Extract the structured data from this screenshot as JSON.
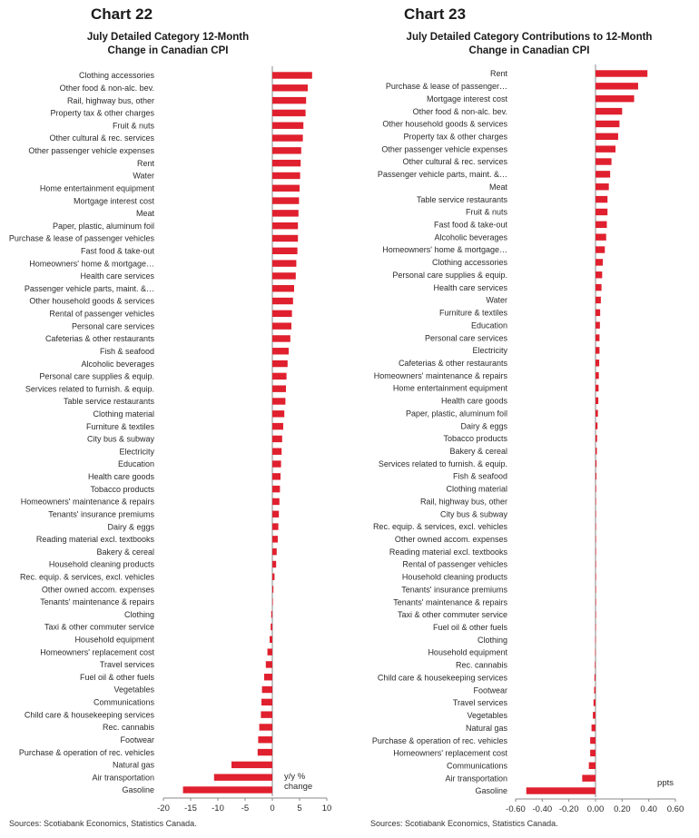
{
  "colors": {
    "bar": "#e0202e",
    "axis": "#888888",
    "text": "#2a2a2a"
  },
  "left_panel": {
    "number": "Chart 22",
    "title_lines": [
      "July Detailed Category 12-Month",
      "Change in Canadian CPI"
    ],
    "source": "Sources: Scotiabank Economics, Statistics Canada."
  },
  "right_panel": {
    "number": "Chart 23",
    "title_lines": [
      "July Detailed Category Contributions to 12-Month",
      "Change in Canadian CPI"
    ],
    "source": "Sources: Scotiabank Economics, Statistics Canada."
  },
  "chart_data": [
    {
      "type": "bar",
      "orientation": "horizontal",
      "title": "July Detailed Category 12-Month Change in Canadian CPI",
      "unit_note": [
        "y/y %",
        "change"
      ],
      "xlim": [
        -20,
        10
      ],
      "xticks": [
        -20,
        -15,
        -10,
        -5,
        0,
        5,
        10
      ],
      "grid": false,
      "categories": [
        "Clothing accessories",
        "Other food & non-alc. bev.",
        "Rail, highway bus, other",
        "Property tax & other charges",
        "Fruit & nuts",
        "Other cultural & rec. services",
        "Other passenger vehicle expenses",
        "Rent",
        "Water",
        "Home entertainment equipment",
        "Mortgage interest cost",
        "Meat",
        "Paper, plastic, aluminum foil",
        "Purchase & lease of passenger vehicles",
        "Fast food & take-out",
        "Homeowners' home & mortgage…",
        "Health care services",
        "Passenger vehicle parts, maint. &…",
        "Other household goods & services",
        "Rental of passenger vehicles",
        "Personal care services",
        "Cafeterias & other restaurants",
        "Fish & seafood",
        "Alcoholic beverages",
        "Personal care supplies & equip.",
        "Services related to furnish. & equip.",
        "Table service restaurants",
        "Clothing material",
        "Furniture & textiles",
        "City bus & subway",
        "Electricity",
        "Education",
        "Health care goods",
        "Tobacco products",
        "Homeowners' maintenance & repairs",
        "Tenants' insurance premiums",
        "Dairy & eggs",
        "Reading material excl. textbooks",
        "Bakery & cereal",
        "Household cleaning products",
        "Rec. equip. & services, excl. vehicles",
        "Other owned accom. expenses",
        "Tenants' maintenance & repairs",
        "Clothing",
        "Taxi & other commuter service",
        "Household equipment",
        "Homeowners' replacement cost",
        "Travel services",
        "Fuel oil & other fuels",
        "Vegetables",
        "Communications",
        "Child care & housekeeping services",
        "Rec. cannabis",
        "Footwear",
        "Purchase & operation of rec. vehicles",
        "Natural gas",
        "Air transportation",
        "Gasoline"
      ],
      "values": [
        7.3,
        6.5,
        6.2,
        6.1,
        5.7,
        5.6,
        5.3,
        5.2,
        5.1,
        5.0,
        4.9,
        4.8,
        4.7,
        4.7,
        4.6,
        4.4,
        4.3,
        4.0,
        3.8,
        3.6,
        3.5,
        3.3,
        3.0,
        2.8,
        2.6,
        2.5,
        2.4,
        2.2,
        2.0,
        1.8,
        1.7,
        1.6,
        1.5,
        1.4,
        1.3,
        1.2,
        1.1,
        1.0,
        0.8,
        0.7,
        0.4,
        0.2,
        0.1,
        -0.2,
        -0.3,
        -0.5,
        -0.9,
        -1.2,
        -1.5,
        -1.9,
        -2.0,
        -2.1,
        -2.4,
        -2.6,
        -2.7,
        -7.5,
        -10.7,
        -16.4
      ]
    },
    {
      "type": "bar",
      "orientation": "horizontal",
      "title": "July Detailed Category Contributions to 12-Month Change in Canadian CPI",
      "unit_note": [
        "ppts"
      ],
      "xlim": [
        -0.6,
        0.6
      ],
      "xticks": [
        "-0.60",
        "-0.40",
        "-0.20",
        "0.00",
        "0.20",
        "0.40",
        "0.60"
      ],
      "grid": false,
      "categories": [
        "Rent",
        "Purchase & lease of passenger…",
        "Mortgage interest cost",
        "Other food & non-alc. bev.",
        "Other household goods & services",
        "Property tax & other charges",
        "Other passenger vehicle expenses",
        "Other cultural & rec. services",
        "Passenger vehicle parts, maint. &…",
        "Meat",
        "Table service restaurants",
        "Fruit & nuts",
        "Fast food & take-out",
        "Alcoholic beverages",
        "Homeowners' home & mortgage…",
        "Clothing accessories",
        "Personal care supplies & equip.",
        "Health care services",
        "Water",
        "Furniture & textiles",
        "Education",
        "Personal care services",
        "Electricity",
        "Cafeterias & other restaurants",
        "Homeowners' maintenance & repairs",
        "Home entertainment equipment",
        "Health care goods",
        "Paper, plastic, aluminum foil",
        "Dairy & eggs",
        "Tobacco products",
        "Bakery & cereal",
        "Services related to furnish. & equip.",
        "Fish & seafood",
        "Clothing material",
        "Rail, highway bus, other",
        "City bus & subway",
        "Rec. equip. & services, excl. vehicles",
        "Other owned accom. expenses",
        "Reading material excl. textbooks",
        "Rental of passenger vehicles",
        "Household cleaning products",
        "Tenants' insurance premiums",
        "Tenants' maintenance & repairs",
        "Taxi & other commuter service",
        "Fuel oil & other fuels",
        "Clothing",
        "Household equipment",
        "Rec. cannabis",
        "Child care & housekeeping services",
        "Footwear",
        "Travel services",
        "Vegetables",
        "Natural gas",
        "Purchase & operation of rec. vehicles",
        "Homeowners' replacement cost",
        "Communications",
        "Air transportation",
        "Gasoline"
      ],
      "values": [
        0.39,
        0.32,
        0.29,
        0.2,
        0.18,
        0.17,
        0.15,
        0.12,
        0.11,
        0.1,
        0.09,
        0.09,
        0.085,
        0.08,
        0.07,
        0.055,
        0.05,
        0.045,
        0.04,
        0.035,
        0.033,
        0.03,
        0.03,
        0.028,
        0.025,
        0.023,
        0.021,
        0.018,
        0.015,
        0.012,
        0.01,
        0.008,
        0.007,
        0.005,
        0.004,
        0.003,
        0.002,
        0.002,
        0.001,
        0.001,
        0.001,
        0.001,
        0.0,
        0.0,
        -0.001,
        -0.002,
        -0.003,
        -0.005,
        -0.008,
        -0.01,
        -0.015,
        -0.02,
        -0.03,
        -0.04,
        -0.04,
        -0.05,
        -0.1,
        -0.52
      ]
    }
  ]
}
